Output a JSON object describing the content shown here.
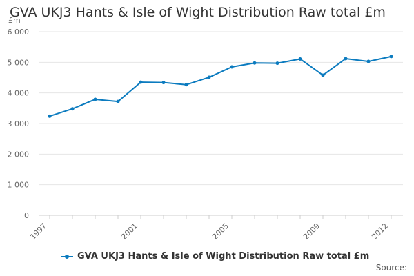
{
  "chart_data": {
    "type": "line",
    "title": "GVA UKJ3 Hants & Isle of Wight Distribution Raw total £m",
    "y_unit": "£m",
    "x": [
      1997,
      1998,
      1999,
      2000,
      2001,
      2002,
      2003,
      2004,
      2005,
      2006,
      2007,
      2008,
      2009,
      2010,
      2011,
      2012
    ],
    "x_tick_labels": [
      "1997",
      "2001",
      "2005",
      "2009",
      "2012"
    ],
    "x_tick_values": [
      1997,
      2001,
      2005,
      2009,
      2012
    ],
    "y_ticks": [
      0,
      1000,
      2000,
      3000,
      4000,
      5000,
      6000
    ],
    "y_tick_labels": [
      "0",
      "1 000",
      "2 000",
      "3 000",
      "4 000",
      "5 000",
      "6 000"
    ],
    "ylim": [
      0,
      6000
    ],
    "xlim": [
      1997,
      2012
    ],
    "grid": true,
    "legend_position": "bottom",
    "series": [
      {
        "name": "GVA UKJ3 Hants & Isle of Wight Distribution Raw total £m",
        "color": "#0b7bbf",
        "values": [
          3240,
          3480,
          3790,
          3720,
          4350,
          4340,
          4270,
          4510,
          4850,
          4980,
          4970,
          5110,
          4580,
          5120,
          5030,
          5190
        ]
      }
    ]
  },
  "source_label": "Source:"
}
